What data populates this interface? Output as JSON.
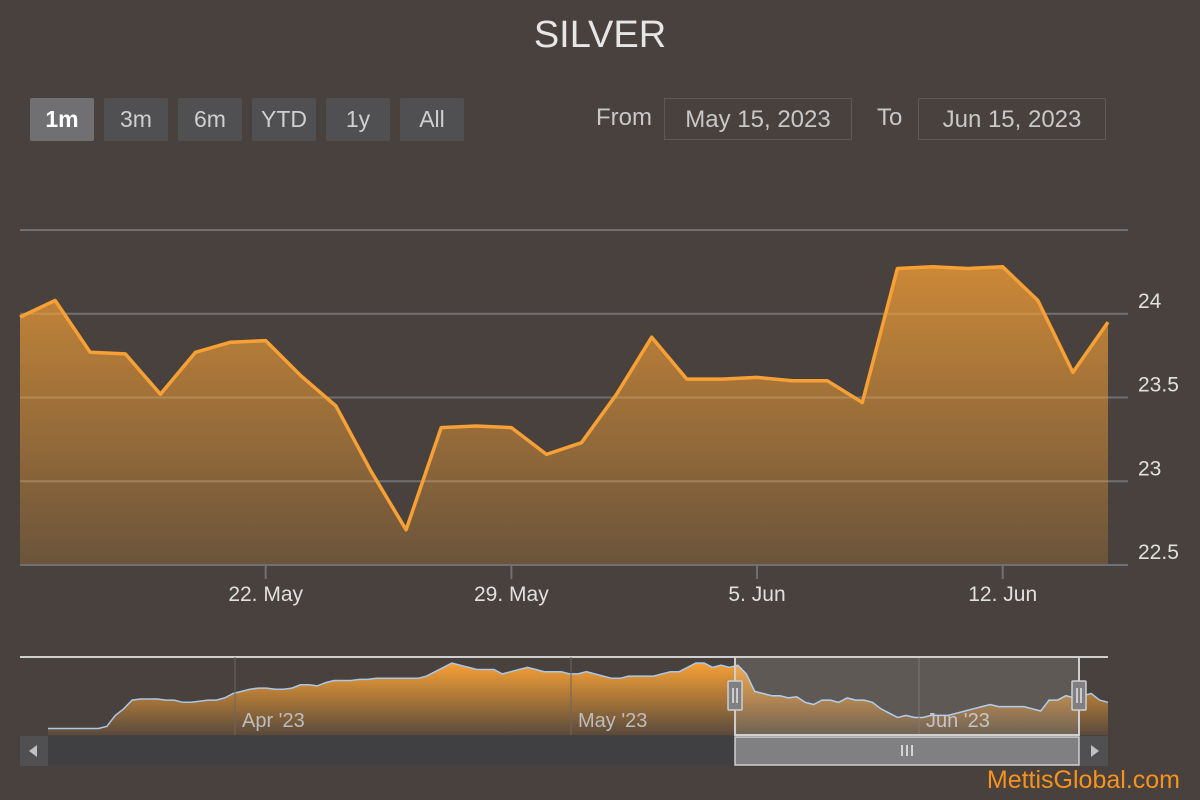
{
  "chart_data": {
    "type": "area",
    "title": "SILVER",
    "range_selector": {
      "buttons": [
        "1m",
        "3m",
        "6m",
        "YTD",
        "1y",
        "All"
      ],
      "selected": "1m",
      "from_label": "From",
      "from_value": "May 15, 2023",
      "to_label": "To",
      "to_value": "Jun 15, 2023"
    },
    "x_ticks": [
      "22. May",
      "29. May",
      "5. Jun",
      "12. Jun"
    ],
    "y_ticks": [
      "22.5",
      "23",
      "23.5",
      "24"
    ],
    "ylim": [
      22.5,
      24.5
    ],
    "grid": true,
    "series": [
      {
        "x": [
          "2023-05-15",
          "2023-05-16",
          "2023-05-17",
          "2023-05-18",
          "2023-05-19",
          "2023-05-20",
          "2023-05-21",
          "2023-05-22",
          "2023-05-23",
          "2023-05-24",
          "2023-05-25",
          "2023-05-26",
          "2023-05-27",
          "2023-05-28",
          "2023-05-29",
          "2023-05-30",
          "2023-05-31",
          "2023-06-01",
          "2023-06-02",
          "2023-06-03",
          "2023-06-04",
          "2023-06-05",
          "2023-06-06",
          "2023-06-07",
          "2023-06-08",
          "2023-06-09",
          "2023-06-10",
          "2023-06-11",
          "2023-06-12",
          "2023-06-13",
          "2023-06-14",
          "2023-06-15"
        ],
        "values": [
          23.98,
          24.08,
          23.77,
          23.76,
          23.52,
          23.77,
          23.83,
          23.84,
          23.63,
          23.45,
          23.06,
          22.71,
          23.32,
          23.33,
          23.32,
          23.16,
          23.23,
          23.52,
          23.86,
          23.61,
          23.61,
          23.62,
          23.6,
          23.6,
          23.47,
          24.27,
          24.28,
          24.27,
          24.28,
          24.08,
          23.65,
          23.95
        ]
      }
    ],
    "color": "#f7a035",
    "navigator": {
      "x_ticks": [
        "Apr '23",
        "May '23",
        "Jun '23"
      ],
      "values": [
        22.3,
        22.3,
        22.3,
        22.3,
        22.3,
        22.3,
        22.3,
        22.4,
        22.9,
        23.2,
        23.6,
        23.65,
        23.65,
        23.65,
        23.6,
        23.6,
        23.5,
        23.5,
        23.55,
        23.6,
        23.6,
        23.7,
        23.9,
        24.0,
        24.1,
        24.15,
        24.15,
        24.1,
        24.1,
        24.15,
        24.3,
        24.3,
        24.25,
        24.4,
        24.5,
        24.5,
        24.5,
        24.55,
        24.55,
        24.6,
        24.6,
        24.6,
        24.6,
        24.6,
        24.6,
        24.7,
        24.9,
        25.1,
        25.3,
        25.2,
        25.1,
        25.0,
        25.0,
        25.0,
        24.8,
        24.9,
        25.0,
        25.1,
        25.0,
        24.9,
        24.9,
        24.9,
        24.8,
        24.8,
        24.9,
        24.8,
        24.7,
        24.6,
        24.6,
        24.7,
        24.7,
        24.7,
        24.7,
        24.8,
        24.9,
        24.9,
        25.1,
        25.3,
        25.3,
        25.1,
        25.2,
        25.1,
        25.2,
        24.8,
        24.0,
        23.9,
        23.8,
        23.8,
        23.7,
        23.75,
        23.5,
        23.4,
        23.6,
        23.6,
        23.5,
        23.7,
        23.6,
        23.6,
        23.5,
        23.2,
        23.0,
        22.8,
        22.9,
        22.8,
        22.8,
        22.9,
        22.9,
        22.9,
        23.0,
        23.1,
        23.2,
        23.3,
        23.4,
        23.3,
        23.3,
        23.3,
        23.3,
        23.2,
        23.1,
        23.6,
        23.6,
        23.8,
        23.7,
        23.8,
        23.9,
        23.6,
        23.5
      ],
      "selection_start": 0.58,
      "selection_end": 1.0
    }
  },
  "watermark": "MettisGlobal.com"
}
